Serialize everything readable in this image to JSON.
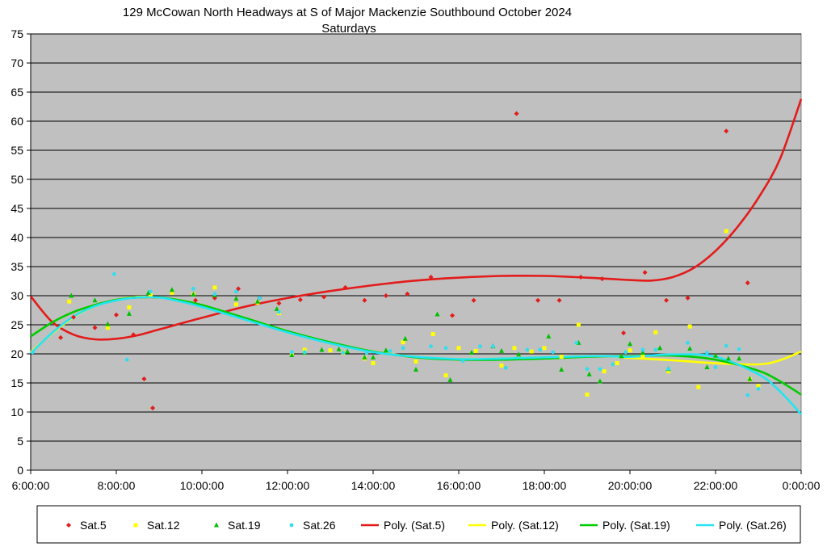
{
  "chart_data": {
    "type": "scatter",
    "title": "129 McCowan North Headways at S of Major Mackenzie Southbound October 2024",
    "subtitle": "Saturdays",
    "xlabel": "",
    "ylabel": "",
    "x_unit": "hours",
    "xlim": [
      6,
      24
    ],
    "ylim": [
      0,
      75
    ],
    "x_ticks": [
      6,
      8,
      10,
      12,
      14,
      16,
      18,
      20,
      22,
      24
    ],
    "x_tick_labels": [
      "6:00:00",
      "8:00:00",
      "10:00:00",
      "12:00:00",
      "14:00:00",
      "16:00:00",
      "18:00:00",
      "20:00:00",
      "22:00:00",
      "0:00:00"
    ],
    "y_ticks": [
      0,
      5,
      10,
      15,
      20,
      25,
      30,
      35,
      40,
      45,
      50,
      55,
      60,
      65,
      70,
      75
    ],
    "grid": true,
    "legend_position": "bottom",
    "plot_background": "#c0c0c0",
    "series": [
      {
        "name": "Sat.5",
        "kind": "points",
        "marker": "diamond",
        "color": "#e31b1b",
        "x": [
          6.7,
          7.0,
          7.5,
          7.8,
          8.0,
          8.4,
          8.65,
          8.85,
          9.3,
          9.85,
          10.3,
          10.85,
          11.35,
          11.8,
          12.3,
          12.85,
          13.35,
          13.8,
          14.3,
          14.8,
          15.35,
          15.85,
          16.35,
          17.35,
          17.85,
          18.35,
          18.85,
          19.35,
          19.85,
          20.35,
          20.85,
          21.35,
          22.25,
          22.75
        ],
        "y": [
          22.8,
          26.3,
          24.5,
          25.0,
          26.7,
          23.3,
          15.7,
          10.7,
          30.6,
          29.2,
          29.6,
          31.2,
          29.6,
          28.7,
          29.3,
          29.8,
          31.4,
          29.2,
          30.0,
          30.3,
          33.2,
          26.6,
          29.2,
          61.3,
          29.2,
          29.2,
          33.2,
          32.9,
          23.6,
          34.0,
          29.2,
          29.6,
          58.3,
          32.2
        ]
      },
      {
        "name": "Sat.12",
        "kind": "points",
        "marker": "square",
        "color": "#ffff00",
        "x": [
          6.9,
          7.8,
          8.3,
          8.8,
          9.3,
          9.8,
          10.3,
          10.8,
          11.3,
          11.8,
          12.1,
          12.4,
          13.0,
          13.3,
          13.8,
          14.0,
          14.7,
          15.0,
          15.4,
          15.7,
          16.0,
          16.4,
          17.0,
          17.3,
          17.7,
          18.0,
          18.4,
          18.8,
          19.0,
          19.4,
          19.7,
          20.0,
          20.3,
          20.6,
          20.9,
          21.4,
          21.6,
          22.25,
          22.8,
          23.0
        ],
        "y": [
          29.0,
          24.5,
          28.0,
          30.2,
          30.5,
          30.2,
          31.4,
          28.5,
          28.8,
          27.0,
          19.8,
          20.7,
          20.6,
          20.2,
          19.2,
          18.4,
          22.0,
          18.7,
          23.4,
          16.3,
          21.0,
          20.5,
          18.0,
          21.0,
          20.4,
          21.0,
          19.5,
          25.0,
          13.0,
          17.0,
          18.4,
          20.6,
          19.6,
          23.7,
          17.0,
          24.7,
          14.3,
          41.1,
          15.6,
          14.5
        ]
      },
      {
        "name": "Sat.19",
        "kind": "points",
        "marker": "triangle",
        "color": "#00c000",
        "x": [
          6.95,
          7.5,
          7.8,
          8.3,
          8.75,
          9.3,
          9.8,
          10.3,
          10.8,
          11.3,
          11.75,
          12.1,
          12.4,
          12.8,
          13.2,
          13.4,
          13.8,
          14.0,
          14.3,
          14.75,
          15.0,
          15.5,
          15.8,
          16.3,
          16.8,
          17.0,
          17.4,
          18.1,
          18.4,
          18.8,
          19.05,
          19.3,
          19.8,
          20.0,
          20.3,
          20.7,
          20.9,
          21.4,
          21.8,
          22.0,
          22.3,
          22.55,
          22.8
        ],
        "y": [
          30.0,
          29.2,
          25.1,
          26.9,
          30.5,
          31.0,
          30.2,
          30.1,
          29.5,
          29.0,
          27.7,
          19.8,
          20.2,
          20.7,
          20.8,
          20.4,
          19.4,
          19.4,
          20.6,
          22.6,
          17.3,
          26.8,
          15.5,
          20.2,
          21.3,
          20.5,
          19.9,
          23.0,
          17.3,
          21.9,
          16.5,
          15.3,
          19.6,
          21.7,
          20.2,
          21.0,
          17.4,
          20.9,
          17.7,
          19.7,
          19.2,
          19.2,
          15.7
        ]
      },
      {
        "name": "Sat.26",
        "kind": "points",
        "marker": "circle",
        "color": "#33ddee",
        "x": [
          6.05,
          7.95,
          8.25,
          8.8,
          9.8,
          10.3,
          10.8,
          11.35,
          11.8,
          12.1,
          12.4,
          13.3,
          13.85,
          14.4,
          14.7,
          15.35,
          15.7,
          16.1,
          16.5,
          16.8,
          17.1,
          17.6,
          17.9,
          18.2,
          18.75,
          19.0,
          19.3,
          19.6,
          19.9,
          20.3,
          20.6,
          20.9,
          21.35,
          21.8,
          22.0,
          22.25,
          22.55,
          22.75,
          23.0
        ],
        "y": [
          20.3,
          33.7,
          19.0,
          30.7,
          31.2,
          30.3,
          30.7,
          29.6,
          27.2,
          20.3,
          20.3,
          20.2,
          20.2,
          20.5,
          21.0,
          21.3,
          21.0,
          18.8,
          21.3,
          21.3,
          17.6,
          20.7,
          20.7,
          20.3,
          21.9,
          17.4,
          17.4,
          18.2,
          20.3,
          20.7,
          20.7,
          17.4,
          21.9,
          20.2,
          17.7,
          21.4,
          20.8,
          12.9,
          14.0
        ]
      },
      {
        "name": "Poly. (Sat.5)",
        "kind": "line",
        "color": "#e31b1b",
        "x": [
          6,
          6.5,
          7,
          7.5,
          8,
          8.5,
          9,
          10,
          11,
          12,
          13,
          14,
          15,
          16,
          17,
          18,
          19,
          20,
          20.5,
          21,
          21.5,
          22,
          22.5,
          23,
          23.5,
          24
        ],
        "y": [
          29.9,
          25.5,
          23.3,
          22.5,
          22.6,
          23.2,
          24.2,
          26.2,
          28.1,
          29.6,
          30.8,
          31.8,
          32.6,
          33.1,
          33.4,
          33.4,
          33.1,
          32.7,
          32.6,
          33.2,
          34.8,
          37.7,
          41.7,
          46.8,
          53.4,
          63.8
        ]
      },
      {
        "name": "Poly. (Sat.12)",
        "kind": "line",
        "color": "#ffff00",
        "x": [
          6,
          6.5,
          7,
          7.5,
          8,
          8.5,
          9,
          9.5,
          10,
          11,
          12,
          13,
          14,
          15,
          16,
          17,
          18,
          19,
          19.5,
          20,
          21,
          22,
          23,
          23.5,
          24
        ],
        "y": [
          20.3,
          23.5,
          26.3,
          28.2,
          29.3,
          29.8,
          29.7,
          29.2,
          28.3,
          26.0,
          23.8,
          21.9,
          20.4,
          19.5,
          19.1,
          19.2,
          19.4,
          19.6,
          19.6,
          19.3,
          18.9,
          18.4,
          18.2,
          18.9,
          20.4
        ]
      },
      {
        "name": "Poly. (Sat.19)",
        "kind": "line",
        "color": "#00cc00",
        "x": [
          6,
          6.5,
          7,
          7.5,
          8,
          8.5,
          9,
          9.5,
          10,
          11,
          12,
          13,
          14,
          15,
          16,
          17,
          18,
          19,
          19.5,
          20,
          21,
          22,
          23,
          23.5,
          24
        ],
        "y": [
          23.0,
          25.4,
          27.2,
          28.4,
          29.3,
          29.7,
          29.7,
          29.2,
          28.4,
          26.2,
          23.9,
          22.0,
          20.4,
          19.4,
          19.0,
          19.0,
          19.2,
          19.5,
          19.6,
          19.6,
          19.7,
          19.0,
          17.1,
          15.3,
          13.0
        ]
      },
      {
        "name": "Poly. (Sat.26)",
        "kind": "line",
        "color": "#22e4f2",
        "x": [
          6,
          6.5,
          7,
          7.5,
          8,
          8.5,
          9,
          9.5,
          10,
          11,
          12,
          13,
          14,
          15,
          16,
          17,
          18,
          19,
          19.5,
          20,
          21,
          22,
          23,
          23.5,
          24
        ],
        "y": [
          20.1,
          23.6,
          26.4,
          28.2,
          29.2,
          29.7,
          29.7,
          29.0,
          28.1,
          25.9,
          23.7,
          21.8,
          20.3,
          19.5,
          19.1,
          19.2,
          19.4,
          19.6,
          19.6,
          19.5,
          19.9,
          19.5,
          16.5,
          13.6,
          9.6
        ]
      }
    ]
  }
}
